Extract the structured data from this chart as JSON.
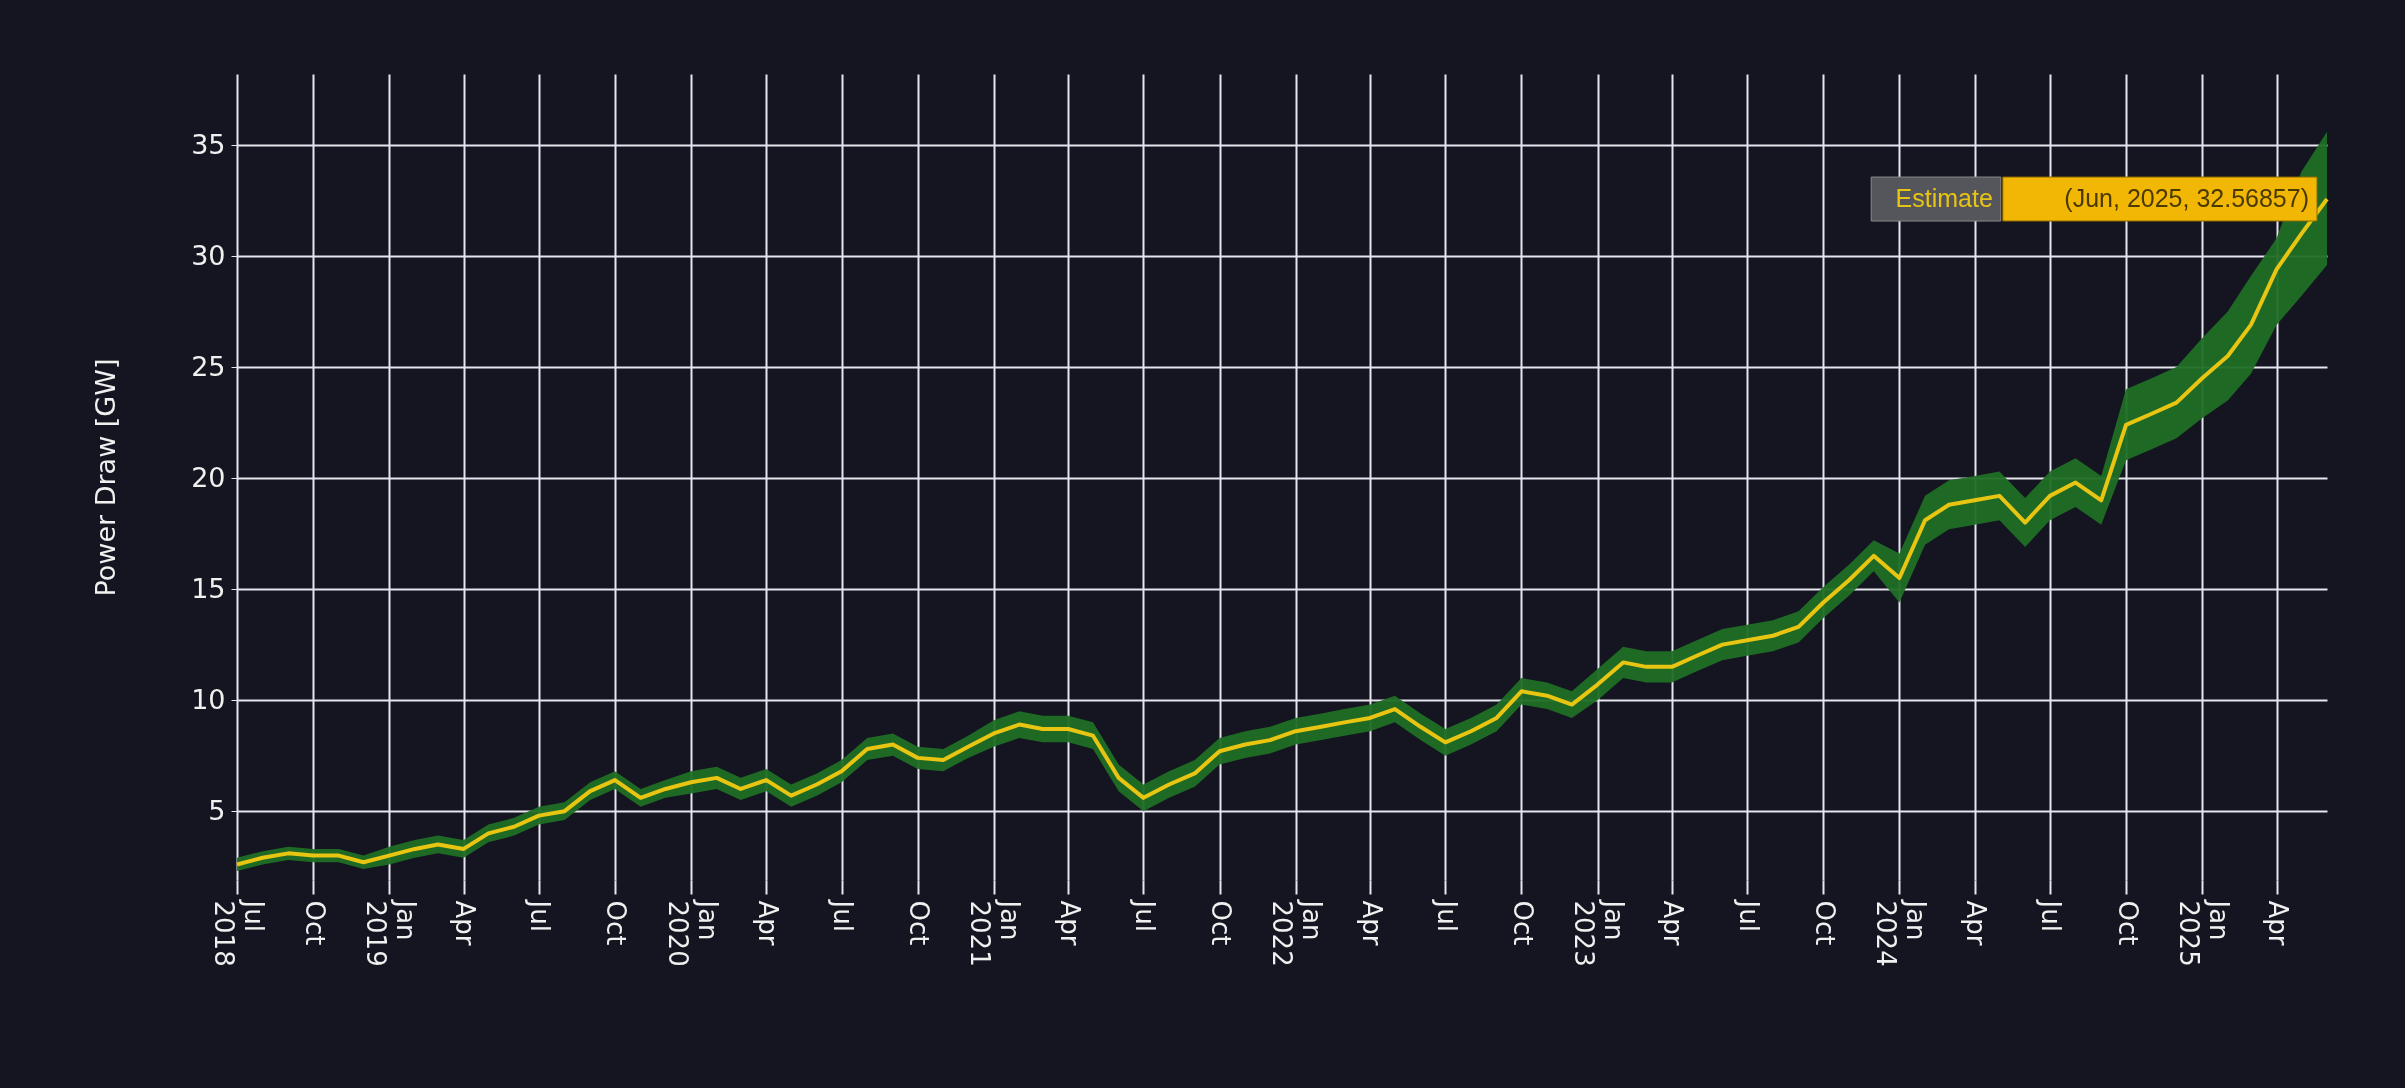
{
  "chart_data": {
    "type": "line",
    "ylabel": "Power Draw [GW]",
    "x": [
      "2018-07",
      "2018-08",
      "2018-09",
      "2018-10",
      "2018-11",
      "2018-12",
      "2019-01",
      "2019-02",
      "2019-03",
      "2019-04",
      "2019-05",
      "2019-06",
      "2019-07",
      "2019-08",
      "2019-09",
      "2019-10",
      "2019-11",
      "2019-12",
      "2020-01",
      "2020-02",
      "2020-03",
      "2020-04",
      "2020-05",
      "2020-06",
      "2020-07",
      "2020-08",
      "2020-09",
      "2020-10",
      "2020-11",
      "2020-12",
      "2021-01",
      "2021-02",
      "2021-03",
      "2021-04",
      "2021-05",
      "2021-06",
      "2021-07",
      "2021-08",
      "2021-09",
      "2021-10",
      "2021-11",
      "2021-12",
      "2022-01",
      "2022-02",
      "2022-03",
      "2022-04",
      "2022-05",
      "2022-06",
      "2022-07",
      "2022-08",
      "2022-09",
      "2022-10",
      "2022-11",
      "2022-12",
      "2023-01",
      "2023-02",
      "2023-03",
      "2023-04",
      "2023-05",
      "2023-06",
      "2023-07",
      "2023-08",
      "2023-09",
      "2023-10",
      "2023-11",
      "2023-12",
      "2024-01",
      "2024-02",
      "2024-03",
      "2024-04",
      "2024-05",
      "2024-06",
      "2024-07",
      "2024-08",
      "2024-09",
      "2024-10",
      "2024-11",
      "2024-12",
      "2025-01",
      "2025-02",
      "2025-03",
      "2025-04",
      "2025-05",
      "2025-06"
    ],
    "series": [
      {
        "name": "Estimate",
        "color": "#e8c413",
        "values": [
          2.6,
          2.9,
          3.1,
          3.0,
          3.0,
          2.7,
          3.0,
          3.3,
          3.5,
          3.3,
          4.0,
          4.3,
          4.8,
          5.0,
          5.9,
          6.4,
          5.6,
          6.0,
          6.3,
          6.5,
          6.0,
          6.4,
          5.7,
          6.2,
          6.8,
          7.8,
          8.0,
          7.4,
          7.3,
          7.9,
          8.5,
          8.9,
          8.7,
          8.7,
          8.4,
          6.5,
          5.6,
          6.2,
          6.7,
          7.7,
          8.0,
          8.2,
          8.6,
          8.8,
          9.0,
          9.2,
          9.6,
          8.8,
          8.1,
          8.6,
          9.2,
          10.4,
          10.2,
          9.8,
          10.7,
          11.7,
          11.5,
          11.5,
          12.0,
          12.5,
          12.7,
          12.9,
          13.3,
          14.4,
          15.4,
          16.5,
          15.5,
          18.1,
          18.8,
          19.0,
          19.2,
          18.0,
          19.2,
          19.8,
          19.0,
          22.4,
          22.9,
          23.4,
          24.5,
          25.5,
          26.9,
          29.4,
          31.0,
          32.56857
        ],
        "upper": [
          2.9,
          3.2,
          3.4,
          3.3,
          3.3,
          3.0,
          3.4,
          3.7,
          3.9,
          3.7,
          4.4,
          4.7,
          5.2,
          5.4,
          6.3,
          6.8,
          6.0,
          6.4,
          6.8,
          7.0,
          6.5,
          6.9,
          6.2,
          6.7,
          7.3,
          8.3,
          8.5,
          7.9,
          7.8,
          8.4,
          9.1,
          9.5,
          9.3,
          9.3,
          9.0,
          7.1,
          6.2,
          6.8,
          7.3,
          8.3,
          8.6,
          8.8,
          9.2,
          9.4,
          9.6,
          9.8,
          10.2,
          9.4,
          8.7,
          9.2,
          9.8,
          11.0,
          10.8,
          10.4,
          11.4,
          12.4,
          12.2,
          12.2,
          12.7,
          13.2,
          13.4,
          13.6,
          14.0,
          15.1,
          16.1,
          17.2,
          16.6,
          19.2,
          19.9,
          20.1,
          20.3,
          19.1,
          20.3,
          20.9,
          20.1,
          24.0,
          24.5,
          25.0,
          26.3,
          27.5,
          29.1,
          30.8,
          33.8,
          35.6
        ],
        "lower": [
          2.3,
          2.6,
          2.8,
          2.7,
          2.7,
          2.4,
          2.6,
          2.9,
          3.1,
          2.9,
          3.6,
          3.9,
          4.4,
          4.6,
          5.5,
          6.0,
          5.2,
          5.6,
          5.8,
          6.0,
          5.5,
          5.9,
          5.2,
          5.7,
          6.3,
          7.3,
          7.5,
          6.9,
          6.8,
          7.4,
          7.9,
          8.3,
          8.1,
          8.1,
          7.8,
          5.9,
          5.0,
          5.6,
          6.1,
          7.1,
          7.4,
          7.6,
          8.0,
          8.2,
          8.4,
          8.6,
          9.0,
          8.2,
          7.5,
          8.0,
          8.6,
          9.8,
          9.6,
          9.2,
          10.0,
          11.0,
          10.8,
          10.8,
          11.3,
          11.8,
          12.0,
          12.2,
          12.6,
          13.7,
          14.7,
          15.8,
          14.4,
          17.0,
          17.7,
          17.9,
          18.1,
          16.9,
          18.1,
          18.7,
          17.9,
          20.8,
          21.3,
          21.8,
          22.7,
          23.5,
          24.7,
          26.9,
          28.2,
          29.6
        ]
      }
    ],
    "xlim": [
      "2018-07",
      "2025-06"
    ],
    "xticks": [
      {
        "value": "2018-07",
        "label": "Jul\n2018"
      },
      {
        "value": "2018-10",
        "label": "Oct"
      },
      {
        "value": "2019-01",
        "label": "Jan\n2019"
      },
      {
        "value": "2019-04",
        "label": "Apr"
      },
      {
        "value": "2019-07",
        "label": "Jul"
      },
      {
        "value": "2019-10",
        "label": "Oct"
      },
      {
        "value": "2020-01",
        "label": "Jan\n2020"
      },
      {
        "value": "2020-04",
        "label": "Apr"
      },
      {
        "value": "2020-07",
        "label": "Jul"
      },
      {
        "value": "2020-10",
        "label": "Oct"
      },
      {
        "value": "2021-01",
        "label": "Jan\n2021"
      },
      {
        "value": "2021-04",
        "label": "Apr"
      },
      {
        "value": "2021-07",
        "label": "Jul"
      },
      {
        "value": "2021-10",
        "label": "Oct"
      },
      {
        "value": "2022-01",
        "label": "Jan\n2022"
      },
      {
        "value": "2022-04",
        "label": "Apr"
      },
      {
        "value": "2022-07",
        "label": "Jul"
      },
      {
        "value": "2022-10",
        "label": "Oct"
      },
      {
        "value": "2023-01",
        "label": "Jan\n2023"
      },
      {
        "value": "2023-04",
        "label": "Apr"
      },
      {
        "value": "2023-07",
        "label": "Jul"
      },
      {
        "value": "2023-10",
        "label": "Oct"
      },
      {
        "value": "2024-01",
        "label": "Jan\n2024"
      },
      {
        "value": "2024-04",
        "label": "Apr"
      },
      {
        "value": "2024-07",
        "label": "Jul"
      },
      {
        "value": "2024-10",
        "label": "Oct"
      },
      {
        "value": "2025-01",
        "label": "Jan\n2025"
      },
      {
        "value": "2025-04",
        "label": "Apr"
      }
    ],
    "ylim": [
      1.9,
      38.2
    ],
    "yticks": [
      5,
      10,
      15,
      20,
      25,
      30,
      35
    ],
    "grid": true,
    "annotations": [
      {
        "text": "(Jun, 2025, 32.56857)",
        "x": "2025-06",
        "y": 32.56857
      }
    ]
  }
}
